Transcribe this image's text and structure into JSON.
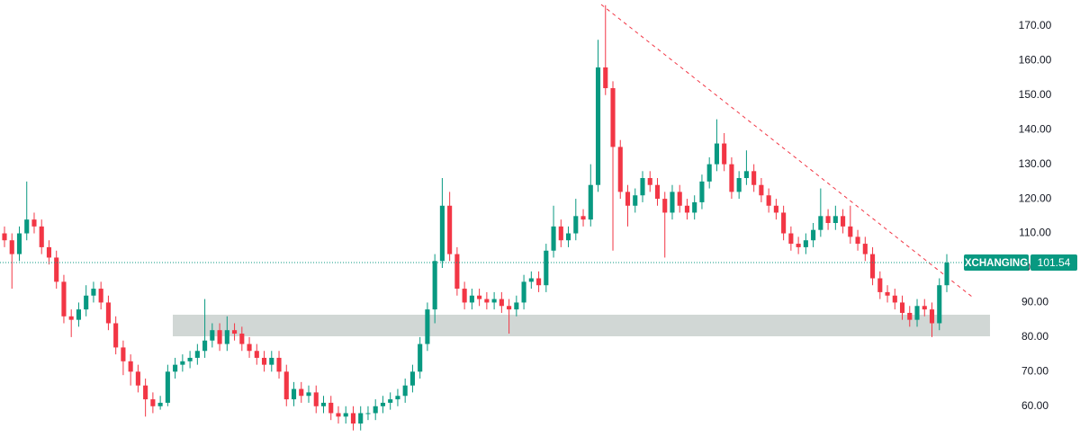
{
  "chart_data": {
    "type": "candlestick",
    "open": [
      110,
      108,
      104,
      110,
      114,
      112,
      106,
      103,
      96,
      86,
      85,
      88,
      92,
      94,
      90,
      84,
      77,
      73,
      70,
      66,
      62,
      60,
      61,
      70,
      72,
      73,
      74,
      76,
      79,
      82,
      78,
      82,
      81,
      78,
      76,
      74,
      72,
      74,
      70,
      62,
      65,
      63,
      64,
      60,
      61,
      58,
      57,
      58,
      55,
      58,
      58,
      60,
      61,
      62,
      63,
      66,
      70,
      78,
      88,
      102,
      118,
      104,
      94,
      90,
      92,
      91,
      90,
      91,
      89,
      88,
      90,
      96,
      97,
      95,
      105,
      112,
      108,
      110,
      115,
      114,
      124,
      158,
      152,
      135,
      122,
      118,
      121,
      126,
      124,
      120,
      116,
      122,
      118,
      116,
      119,
      125,
      130,
      136,
      130,
      122,
      126,
      128,
      124,
      121,
      118,
      116,
      110,
      107,
      106,
      108,
      111,
      115,
      113,
      115,
      112,
      109,
      107,
      104,
      97,
      93,
      92,
      90,
      87,
      85,
      89,
      88,
      84,
      95
    ],
    "high": [
      112,
      110,
      112,
      125,
      116,
      114,
      108,
      105,
      98,
      88,
      90,
      95,
      96,
      96,
      92,
      86,
      79,
      75,
      72,
      68,
      64,
      63,
      72,
      74,
      75,
      76,
      78,
      91,
      84,
      84,
      86,
      84,
      83,
      80,
      78,
      76,
      76,
      76,
      72,
      67,
      67,
      66,
      66,
      63,
      63,
      60,
      60,
      60,
      60,
      60,
      62,
      63,
      64,
      65,
      68,
      72,
      80,
      90,
      104,
      126,
      122,
      106,
      96,
      94,
      94,
      93,
      93,
      93,
      91,
      92,
      98,
      99,
      99,
      107,
      118,
      114,
      112,
      120,
      117,
      130,
      166,
      176,
      154,
      137,
      124,
      123,
      128,
      128,
      126,
      122,
      124,
      124,
      120,
      121,
      127,
      132,
      143,
      139,
      132,
      128,
      134,
      130,
      126,
      123,
      120,
      118,
      112,
      109,
      110,
      113,
      123,
      117,
      118,
      117,
      118,
      111,
      109,
      106,
      99,
      95,
      94,
      92,
      89,
      91,
      91,
      90,
      97,
      104
    ],
    "low": [
      106,
      94,
      102,
      108,
      110,
      104,
      101,
      94,
      84,
      80,
      83,
      86,
      90,
      88,
      82,
      75,
      69,
      66,
      64,
      57,
      58,
      59,
      60,
      68,
      70,
      71,
      72,
      74,
      77,
      76,
      76,
      79,
      76,
      74,
      72,
      70,
      70,
      68,
      60,
      60,
      61,
      61,
      58,
      58,
      56,
      55,
      55,
      53,
      53,
      56,
      56,
      58,
      59,
      60,
      61,
      64,
      68,
      76,
      84,
      100,
      102,
      92,
      88,
      88,
      89,
      88,
      88,
      87,
      81,
      86,
      88,
      94,
      93,
      93,
      103,
      106,
      106,
      108,
      112,
      112,
      122,
      150,
      105,
      120,
      112,
      116,
      119,
      122,
      118,
      103,
      114,
      116,
      114,
      114,
      117,
      123,
      128,
      128,
      120,
      120,
      124,
      122,
      119,
      116,
      114,
      108,
      105,
      104,
      104,
      106,
      109,
      111,
      111,
      110,
      107,
      105,
      102,
      95,
      91,
      90,
      88,
      85,
      83,
      83,
      86,
      80,
      82,
      93
    ],
    "close": [
      108,
      104,
      110,
      114,
      112,
      106,
      103,
      96,
      86,
      85,
      88,
      92,
      94,
      90,
      84,
      77,
      73,
      70,
      66,
      62,
      60,
      61,
      70,
      72,
      73,
      74,
      76,
      79,
      82,
      78,
      82,
      81,
      78,
      76,
      74,
      72,
      74,
      70,
      62,
      65,
      63,
      64,
      60,
      61,
      58,
      57,
      58,
      55,
      58,
      58,
      60,
      61,
      62,
      63,
      66,
      70,
      78,
      88,
      102,
      118,
      104,
      94,
      90,
      92,
      91,
      90,
      91,
      89,
      88,
      90,
      96,
      97,
      95,
      105,
      112,
      108,
      110,
      115,
      114,
      124,
      158,
      152,
      135,
      122,
      118,
      121,
      126,
      124,
      120,
      116,
      122,
      118,
      116,
      119,
      125,
      130,
      136,
      130,
      122,
      126,
      128,
      124,
      121,
      118,
      116,
      110,
      107,
      106,
      108,
      111,
      115,
      113,
      115,
      112,
      109,
      107,
      104,
      97,
      93,
      92,
      90,
      87,
      85,
      89,
      88,
      84,
      95,
      101.54
    ],
    "up_color": "#089981",
    "down_color": "#f23645",
    "ylim": [
      51.1,
      177.5
    ],
    "yticks": [
      {
        "value": 60,
        "label": "60.00"
      },
      {
        "value": 70,
        "label": "70.00"
      },
      {
        "value": 80,
        "label": "80.00"
      },
      {
        "value": 90,
        "label": "90.00"
      },
      {
        "value": 100,
        "label": "100.00"
      },
      {
        "value": 110,
        "label": "110.00"
      },
      {
        "value": 120,
        "label": "120.00"
      },
      {
        "value": 130,
        "label": "130.00"
      },
      {
        "value": 140,
        "label": "140.00"
      },
      {
        "value": 150,
        "label": "150.00"
      },
      {
        "value": 160,
        "label": "160.00"
      },
      {
        "value": 170,
        "label": "170.00"
      }
    ],
    "grid": false,
    "last_price": {
      "label": "XCHANGING",
      "value": 101.54,
      "color": "#089981"
    }
  }
}
